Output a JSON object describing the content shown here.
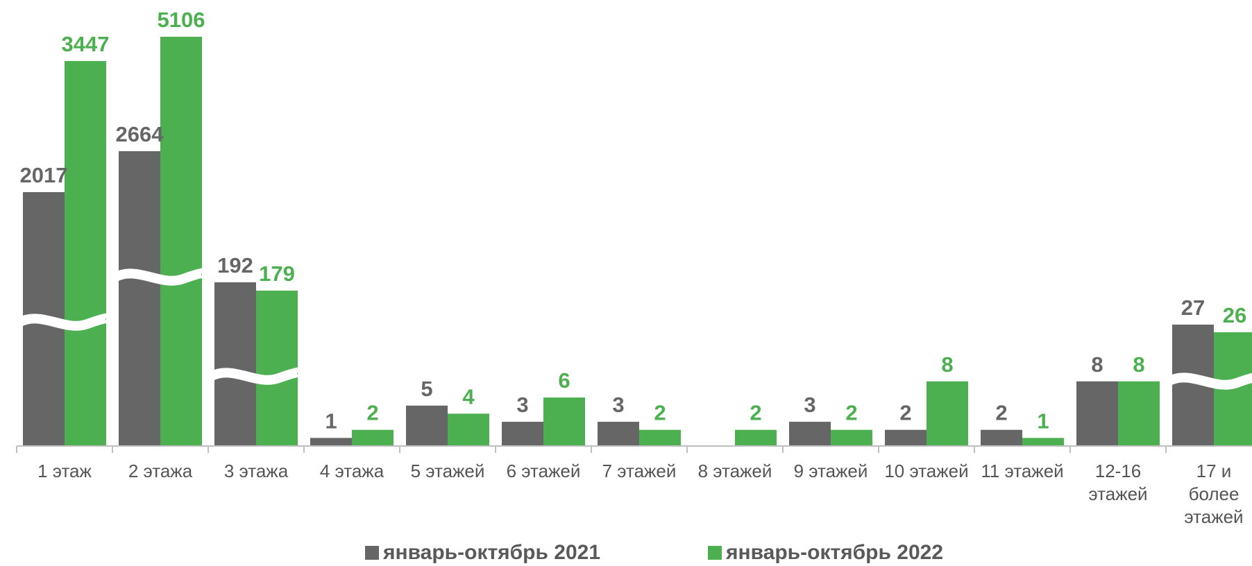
{
  "chart_data": {
    "type": "bar",
    "categories": [
      [
        "1 этаж"
      ],
      [
        "2 этажа"
      ],
      [
        "3 этажа"
      ],
      [
        "4 этажа"
      ],
      [
        "5 этажей"
      ],
      [
        "6 этажей"
      ],
      [
        "7 этажей"
      ],
      [
        "8 этажей"
      ],
      [
        "9 этажей"
      ],
      [
        "10 этажей"
      ],
      [
        "11 этажей"
      ],
      [
        "12-16",
        "этажей"
      ],
      [
        "17 и",
        "более",
        "этажей"
      ]
    ],
    "series": [
      {
        "name": "январь-октябрь 2021",
        "color": "#666666",
        "values": [
          2017,
          2664,
          192,
          1,
          5,
          3,
          3,
          null,
          3,
          2,
          2,
          8,
          27
        ]
      },
      {
        "name": "январь-октябрь 2022",
        "color": "#4caf50",
        "values": [
          3447,
          5106,
          179,
          2,
          4,
          6,
          2,
          2,
          2,
          8,
          1,
          8,
          26
        ]
      }
    ],
    "broken_axis": true,
    "legend_position": "bottom"
  }
}
